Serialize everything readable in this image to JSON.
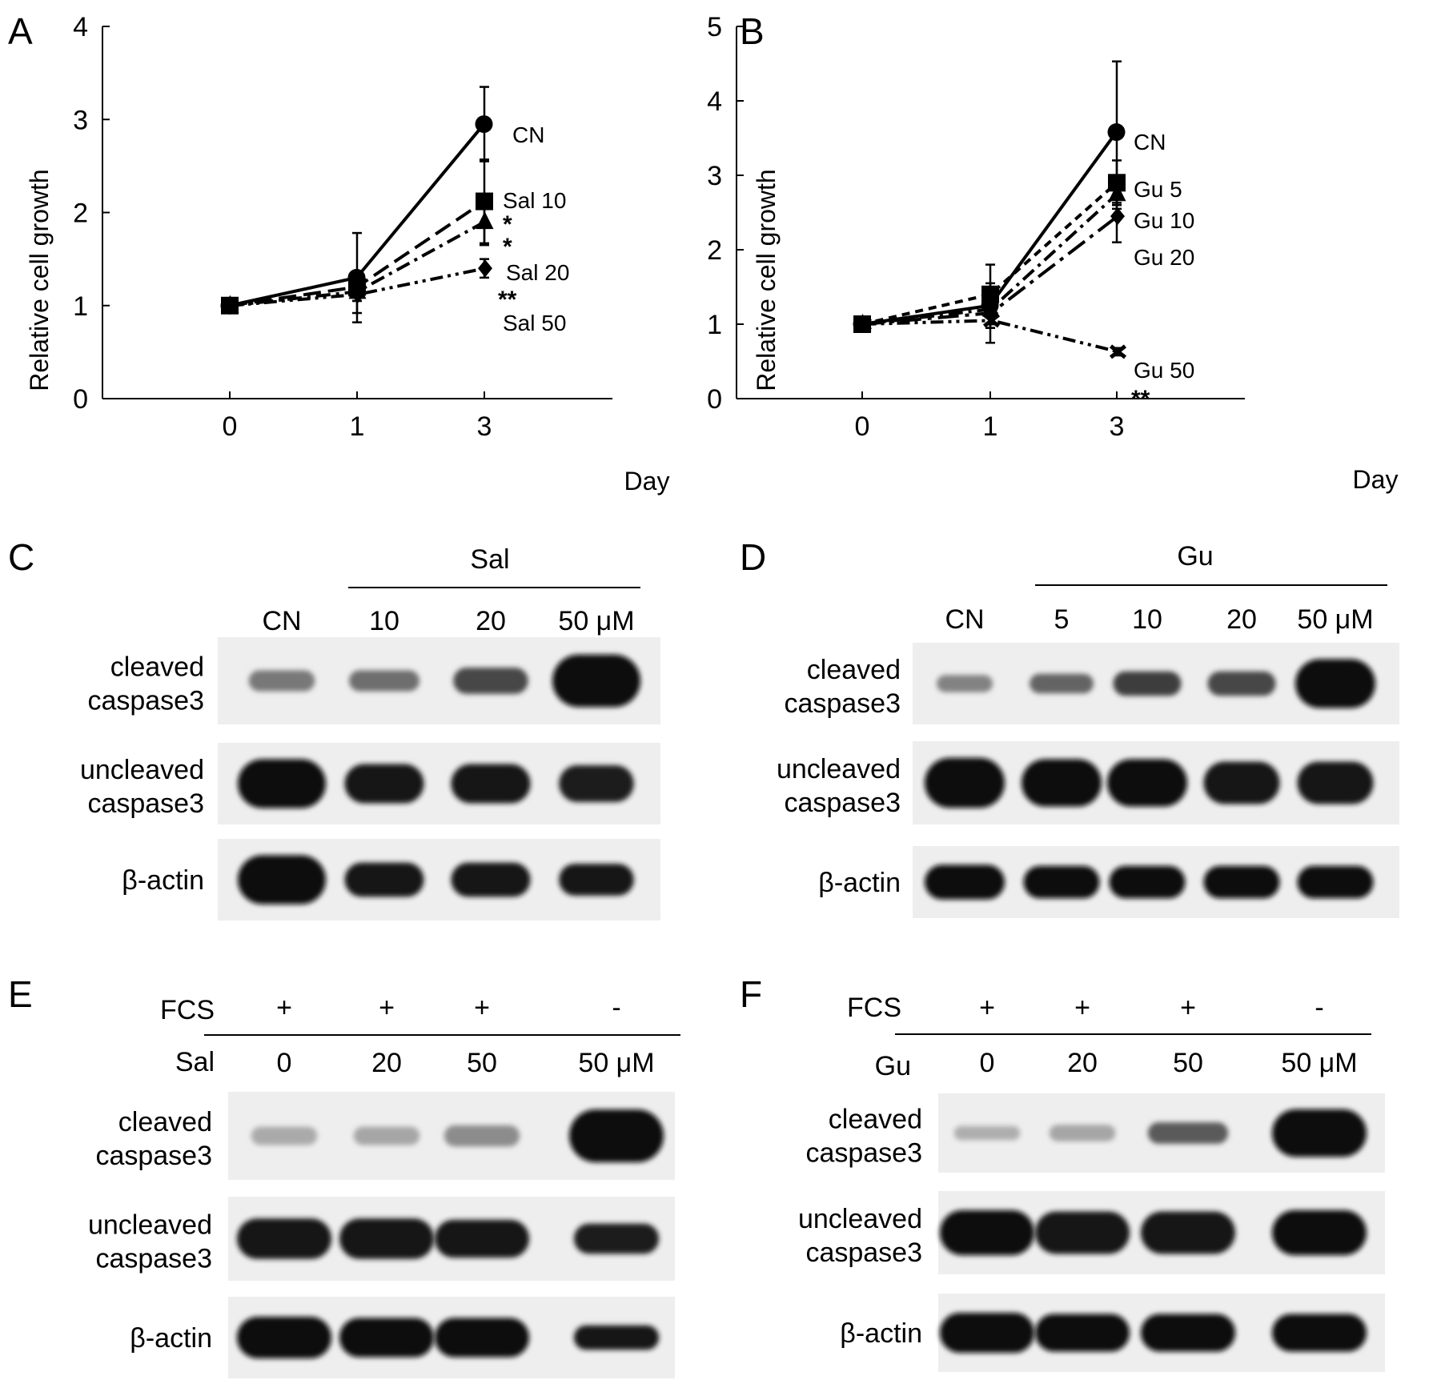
{
  "panels": {
    "A": "A",
    "B": "B",
    "C": "C",
    "D": "D",
    "E": "E",
    "F": "F"
  },
  "chart_data": [
    {
      "type": "line",
      "panel": "A",
      "xlabel": "Day",
      "ylabel": "Relative  cell growth",
      "x": [
        "0",
        "1",
        "3"
      ],
      "ylim": [
        0,
        4
      ],
      "yticks": [
        "0",
        "1",
        "2",
        "3",
        "4"
      ],
      "series": [
        {
          "name": "CN",
          "values": [
            1.0,
            1.3,
            2.95
          ],
          "err": [
            0,
            0.48,
            0.4
          ],
          "marker": "circle",
          "dash": "solid",
          "stars": ""
        },
        {
          "name": "Sal 10",
          "values": [
            1.0,
            1.2,
            2.12
          ],
          "err": [
            0,
            0.15,
            0.45
          ],
          "marker": "square",
          "dash": "long",
          "stars": "*"
        },
        {
          "name": "Sal 20",
          "values": [
            1.0,
            1.15,
            1.9
          ],
          "err": [
            0,
            0.1,
            0.25
          ],
          "marker": "triangle",
          "dash": "dashdot",
          "stars": "*"
        },
        {
          "name": "Sal 50",
          "values": [
            1.0,
            1.12,
            1.4
          ],
          "err": [
            0,
            0.2,
            0.1
          ],
          "marker": "diamond",
          "dash": "dashdotdot",
          "stars": "**"
        }
      ]
    },
    {
      "type": "line",
      "panel": "B",
      "xlabel": "Day",
      "ylabel": "Relative  cell growth",
      "x": [
        "0",
        "1",
        "3"
      ],
      "ylim": [
        0,
        5
      ],
      "yticks": [
        "0",
        "1",
        "2",
        "3",
        "4",
        "5"
      ],
      "series": [
        {
          "name": "CN",
          "values": [
            1.0,
            1.25,
            3.58
          ],
          "err": [
            0,
            0.3,
            0.95
          ],
          "marker": "circle",
          "dash": "solid",
          "stars": ""
        },
        {
          "name": "Gu 5",
          "values": [
            1.0,
            1.4,
            2.9
          ],
          "err": [
            0,
            0.4,
            0.3
          ],
          "marker": "square",
          "dash": "short",
          "stars": ""
        },
        {
          "name": "Gu 10",
          "values": [
            1.0,
            1.2,
            2.75
          ],
          "err": [
            0,
            0.2,
            0.2
          ],
          "marker": "triangle",
          "dash": "dashdot",
          "stars": ""
        },
        {
          "name": "Gu 20",
          "values": [
            1.0,
            1.15,
            2.45
          ],
          "err": [
            0,
            0.2,
            0.35
          ],
          "marker": "diamond",
          "dash": "longdashdot",
          "stars": ""
        },
        {
          "name": "Gu 50",
          "values": [
            1.0,
            1.05,
            0.63
          ],
          "err": [
            0,
            0.3,
            0.05
          ],
          "marker": "x",
          "dash": "dashdotdot",
          "stars": "**"
        }
      ]
    }
  ],
  "blots": {
    "C": {
      "group_label": "Sal",
      "lanes": [
        "CN",
        "10",
        "20",
        "50  μM"
      ],
      "rows": [
        {
          "label1": "cleaved",
          "label2": "caspase3",
          "intensity": [
            0.45,
            0.5,
            0.7,
            1.0
          ],
          "band_w": [
            0.75,
            0.8,
            0.85,
            1.0
          ],
          "band_h": [
            0.4,
            0.4,
            0.5,
            1.0
          ]
        },
        {
          "label1": "uncleaved",
          "label2": "caspase3",
          "intensity": [
            1.0,
            0.95,
            0.95,
            0.9
          ],
          "band_w": [
            1.0,
            0.9,
            0.9,
            0.85
          ],
          "band_h": [
            1.0,
            0.8,
            0.8,
            0.75
          ]
        },
        {
          "label1": "β-actin",
          "label2": "",
          "intensity": [
            1.0,
            0.95,
            0.95,
            0.95
          ],
          "band_w": [
            1.0,
            0.9,
            0.9,
            0.85
          ],
          "band_h": [
            1.0,
            0.7,
            0.7,
            0.65
          ]
        }
      ]
    },
    "D": {
      "group_label": "Gu",
      "lanes": [
        "CN",
        "5",
        "10",
        "20",
        "50  μM"
      ],
      "rows": [
        {
          "label1": "cleaved",
          "label2": "caspase3",
          "intensity": [
            0.4,
            0.55,
            0.75,
            0.7,
            1.0
          ],
          "band_w": [
            0.7,
            0.8,
            0.85,
            0.85,
            1.0
          ],
          "band_h": [
            0.35,
            0.4,
            0.5,
            0.5,
            1.0
          ]
        },
        {
          "label1": "uncleaved",
          "label2": "caspase3",
          "intensity": [
            1.0,
            1.0,
            1.0,
            0.95,
            0.95
          ],
          "band_w": [
            1.0,
            1.0,
            1.0,
            0.95,
            0.95
          ],
          "band_h": [
            1.0,
            0.95,
            0.95,
            0.85,
            0.85
          ]
        },
        {
          "label1": "β-actin",
          "label2": "",
          "intensity": [
            1.0,
            1.0,
            1.0,
            1.0,
            1.0
          ],
          "band_w": [
            1.0,
            0.95,
            0.95,
            0.95,
            0.95
          ],
          "band_h": [
            0.8,
            0.75,
            0.75,
            0.75,
            0.75
          ]
        }
      ]
    },
    "E": {
      "row1_label": "FCS",
      "row1": [
        "+",
        "+",
        "+",
        "-"
      ],
      "row2_label": "Sal",
      "row2": [
        "0",
        "20",
        "50",
        "50  μM"
      ],
      "rows": [
        {
          "label1": "cleaved",
          "label2": "caspase3",
          "intensity": [
            0.2,
            0.22,
            0.35,
            1.0
          ],
          "band_w": [
            0.7,
            0.7,
            0.8,
            1.0
          ],
          "band_h": [
            0.35,
            0.35,
            0.4,
            1.0
          ]
        },
        {
          "label1": "uncleaved",
          "label2": "caspase3",
          "intensity": [
            0.95,
            0.95,
            0.95,
            0.9
          ],
          "band_w": [
            1.0,
            1.0,
            1.0,
            0.9
          ],
          "band_h": [
            0.8,
            0.8,
            0.75,
            0.6
          ]
        },
        {
          "label1": "β-actin",
          "label2": "",
          "intensity": [
            1.0,
            1.0,
            1.0,
            0.95
          ],
          "band_w": [
            1.0,
            1.0,
            1.0,
            0.9
          ],
          "band_h": [
            0.85,
            0.8,
            0.8,
            0.5
          ]
        }
      ]
    },
    "F": {
      "row1_label": "FCS",
      "row1": [
        "+",
        "+",
        "+",
        "-"
      ],
      "row2_label": "Gu",
      "row2": [
        "0",
        "20",
        "50",
        "50  μM"
      ],
      "rows": [
        {
          "label1": "cleaved",
          "label2": "caspase3",
          "intensity": [
            0.18,
            0.22,
            0.6,
            1.0
          ],
          "band_w": [
            0.7,
            0.7,
            0.85,
            1.0
          ],
          "band_h": [
            0.3,
            0.35,
            0.45,
            1.0
          ]
        },
        {
          "label1": "uncleaved",
          "label2": "caspase3",
          "intensity": [
            1.0,
            0.95,
            0.95,
            1.0
          ],
          "band_w": [
            1.0,
            1.0,
            1.0,
            1.0
          ],
          "band_h": [
            0.9,
            0.85,
            0.85,
            0.9
          ]
        },
        {
          "label1": "β-actin",
          "label2": "",
          "intensity": [
            1.0,
            1.0,
            1.0,
            1.0
          ],
          "band_w": [
            1.0,
            1.0,
            1.0,
            1.0
          ],
          "band_h": [
            0.85,
            0.8,
            0.8,
            0.8
          ]
        }
      ]
    }
  }
}
